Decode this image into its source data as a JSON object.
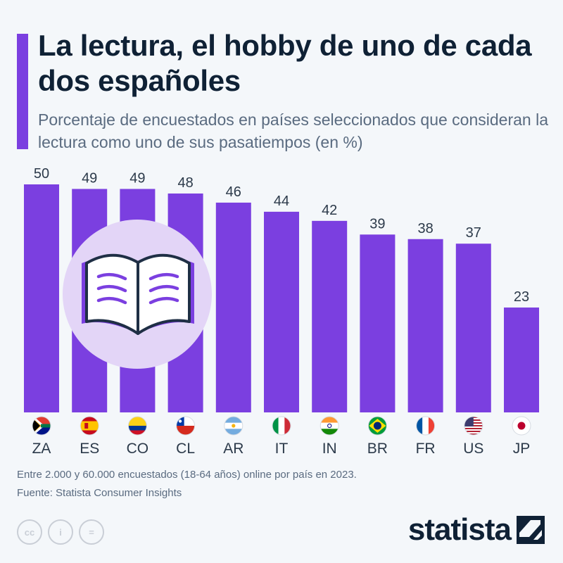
{
  "header": {
    "title": "La lectura, el hobby de uno de cada dos españoles",
    "subtitle": "Porcentaje de encuestados en países seleccionados que consideran la lectura como uno de sus pasatiempos (en %)"
  },
  "colors": {
    "accent": "#7b3fe0",
    "bar": "#7b3fe0",
    "illustration_circle": "#e3d5f7",
    "text_dark": "#0f2135"
  },
  "illustration": {
    "icon": "open-book-icon"
  },
  "chart_data": {
    "type": "bar",
    "categories": [
      "ZA",
      "ES",
      "CO",
      "CL",
      "AR",
      "IT",
      "IN",
      "BR",
      "FR",
      "US",
      "JP"
    ],
    "values": [
      50,
      49,
      49,
      48,
      46,
      44,
      42,
      39,
      38,
      37,
      23
    ],
    "flags": [
      "south-africa-flag-icon",
      "spain-flag-icon",
      "colombia-flag-icon",
      "chile-flag-icon",
      "argentina-flag-icon",
      "italy-flag-icon",
      "india-flag-icon",
      "brazil-flag-icon",
      "france-flag-icon",
      "usa-flag-icon",
      "japan-flag-icon"
    ],
    "title": "La lectura, el hobby de uno de cada dos españoles",
    "xlabel": "",
    "ylabel": "",
    "ylim": [
      0,
      50
    ],
    "grid": false,
    "data_labels": true
  },
  "footer": {
    "note": "Entre 2.000 y 60.000 encuestados (18-64 años) online por país en 2023.",
    "source": "Fuente: Statista Consumer Insights",
    "license_icons": [
      "cc-icon",
      "attribution-icon",
      "no-derivatives-icon"
    ],
    "license_text": {
      "cc": "cc",
      "attribution": "i",
      "nd": "="
    },
    "brand": "statista"
  }
}
